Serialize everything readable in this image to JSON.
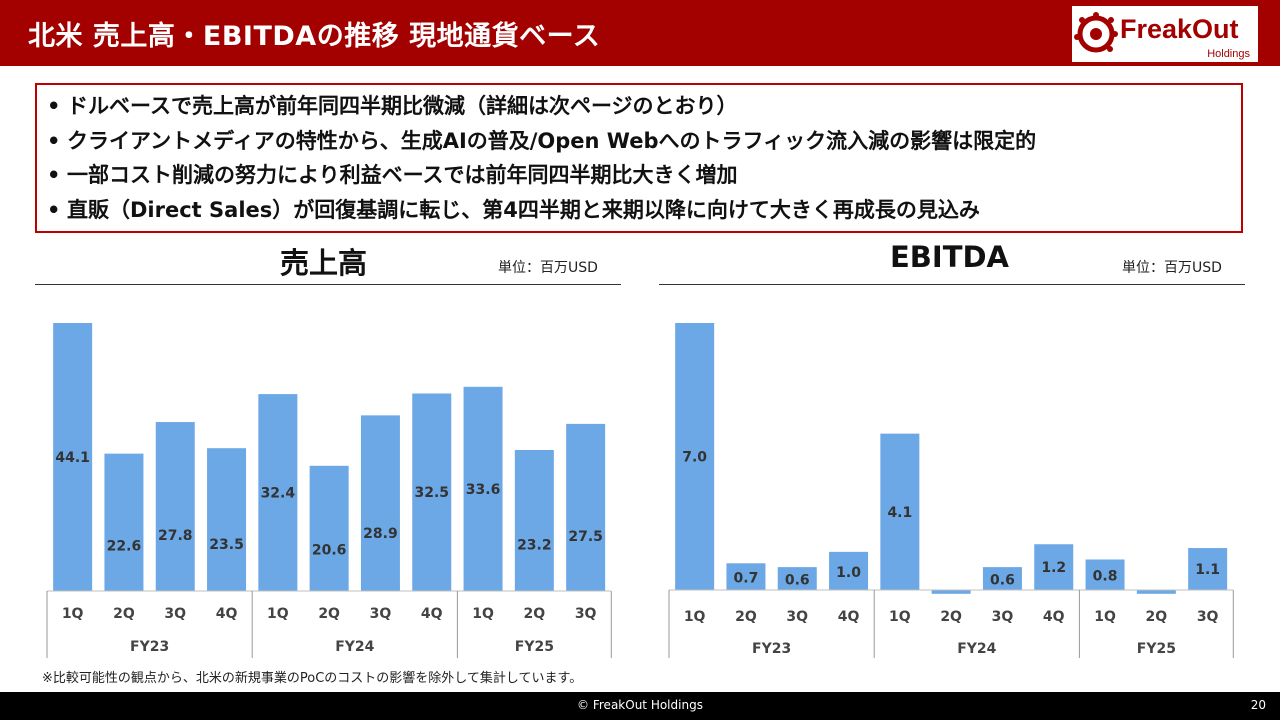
{
  "header": {
    "title": "北米 売上高・EBITDAの推移 現地通貨ベース",
    "logo_name": "FreakOut",
    "logo_sub": "Holdings"
  },
  "summary": [
    "ドルベースで売上高が前年同四半期比微減（詳細は次ページのとおり）",
    "クライアントメディアの特性から、生成AIの普及/Open Webへのトラフィック流入減の影響は限定的",
    "一部コスト削減の努力により利益ベースでは前年同四半期比大きく増加",
    "直販（Direct Sales）が回復基調に転じ、第4四半期と来期以降に向けて大きく再成長の見込み"
  ],
  "chart_data": [
    {
      "type": "bar",
      "title": "売上高",
      "unit": "単位：百万USD",
      "categories": [
        "1Q",
        "2Q",
        "3Q",
        "4Q",
        "1Q",
        "2Q",
        "3Q",
        "4Q",
        "1Q",
        "2Q",
        "3Q"
      ],
      "groups": [
        {
          "label": "FY23",
          "count": 4
        },
        {
          "label": "FY24",
          "count": 4
        },
        {
          "label": "FY25",
          "count": 3
        }
      ],
      "values": [
        44.1,
        22.6,
        27.8,
        23.5,
        32.4,
        20.6,
        28.9,
        32.5,
        33.6,
        23.2,
        27.5
      ],
      "labels": [
        "44.1",
        "22.6",
        "27.8",
        "23.5",
        "32.4",
        "20.6",
        "28.9",
        "32.5",
        "33.6",
        "23.2",
        "27.5"
      ],
      "bar_heights": [
        44.1,
        22.6,
        27.8,
        23.5,
        32.4,
        20.6,
        28.9,
        32.5,
        33.6,
        23.2,
        27.5
      ],
      "ylim": [
        0,
        44.1
      ],
      "color": "#6ca8e6"
    },
    {
      "type": "bar",
      "title": "EBITDA",
      "unit": "単位：百万USD",
      "categories": [
        "1Q",
        "2Q",
        "3Q",
        "4Q",
        "1Q",
        "2Q",
        "3Q",
        "4Q",
        "1Q",
        "2Q",
        "3Q"
      ],
      "groups": [
        {
          "label": "FY23",
          "count": 4
        },
        {
          "label": "FY24",
          "count": 4
        },
        {
          "label": "FY25",
          "count": 3
        }
      ],
      "values": [
        7.0,
        0.7,
        0.6,
        1.0,
        4.1,
        -0.1,
        0.6,
        1.2,
        0.8,
        -0.1,
        1.1
      ],
      "labels": [
        "7.0",
        "0.7",
        "0.6",
        "1.0",
        "4.1",
        "",
        "0.6",
        "1.2",
        "0.8",
        "",
        "1.1"
      ],
      "ylim": [
        -0.1,
        7.0
      ],
      "color": "#6ca8e6"
    }
  ],
  "footnote": "※比較可能性の観点から、北米の新規事業のPoCのコストの影響を除外して集計しています。",
  "footer": {
    "copyright": "© FreakOut Holdings",
    "page": "20"
  }
}
